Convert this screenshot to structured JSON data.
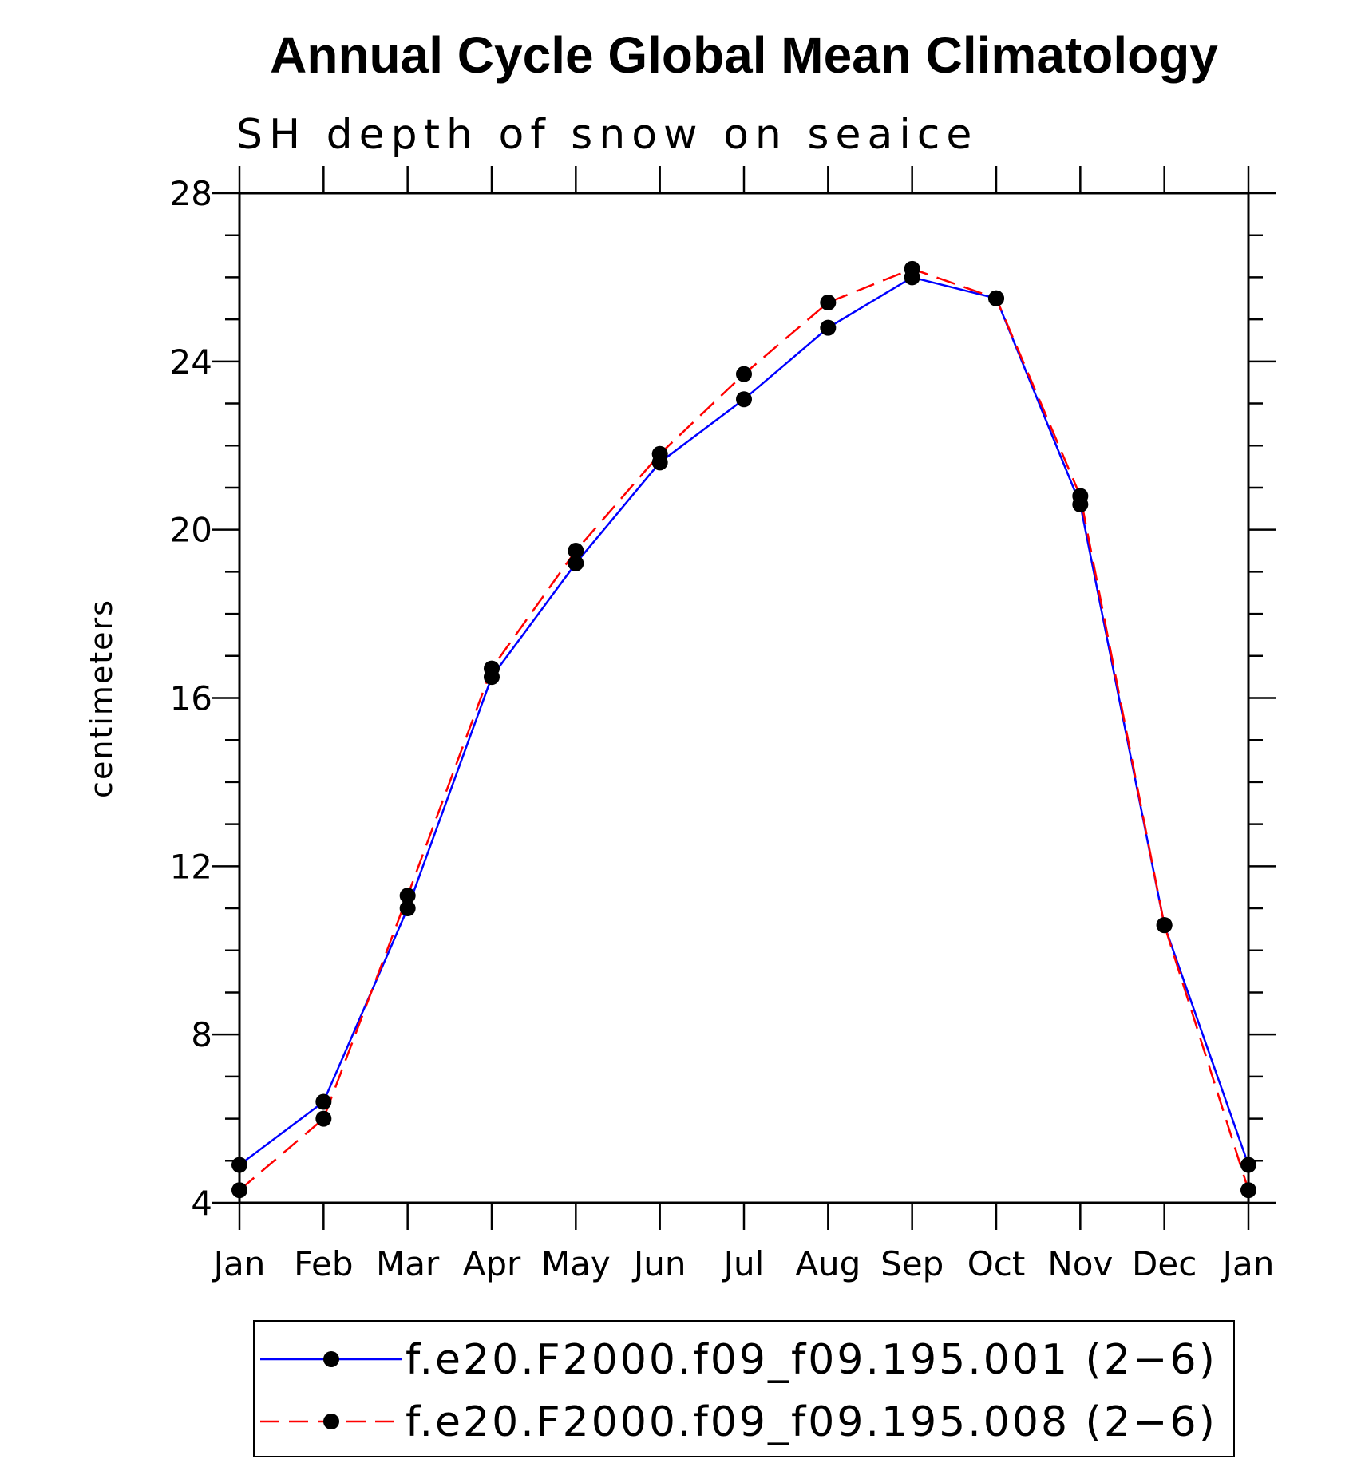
{
  "chart_data": {
    "type": "line",
    "title": "Annual Cycle Global Mean Climatology",
    "subtitle": "SH depth of snow on seaice",
    "xlabel": "",
    "ylabel": "centimeters",
    "categories": [
      "Jan",
      "Feb",
      "Mar",
      "Apr",
      "May",
      "Jun",
      "Jul",
      "Aug",
      "Sep",
      "Oct",
      "Nov",
      "Dec",
      "Jan"
    ],
    "ylim": [
      4,
      28
    ],
    "yticks": [
      4,
      8,
      12,
      16,
      20,
      24,
      28
    ],
    "ytick_labels": [
      "4",
      "8",
      "12",
      "16",
      "20",
      "24",
      "28"
    ],
    "grid": false,
    "legend_position": "bottom",
    "series": [
      {
        "name": "f.e20.F2000.f09_f09.195.001 (2−6)",
        "color": "#0000ff",
        "line_style": "solid",
        "marker": "filled-circle",
        "values": [
          4.9,
          6.4,
          11.0,
          16.5,
          19.2,
          21.6,
          23.1,
          24.8,
          26.0,
          25.5,
          20.6,
          10.6,
          4.9
        ]
      },
      {
        "name": "f.e20.F2000.f09_f09.195.008 (2−6)",
        "color": "#ff0000",
        "line_style": "dashed",
        "marker": "filled-circle",
        "values": [
          4.3,
          6.0,
          11.3,
          16.7,
          19.5,
          21.8,
          23.7,
          25.4,
          26.2,
          25.5,
          20.8,
          10.6,
          4.3
        ]
      }
    ]
  }
}
